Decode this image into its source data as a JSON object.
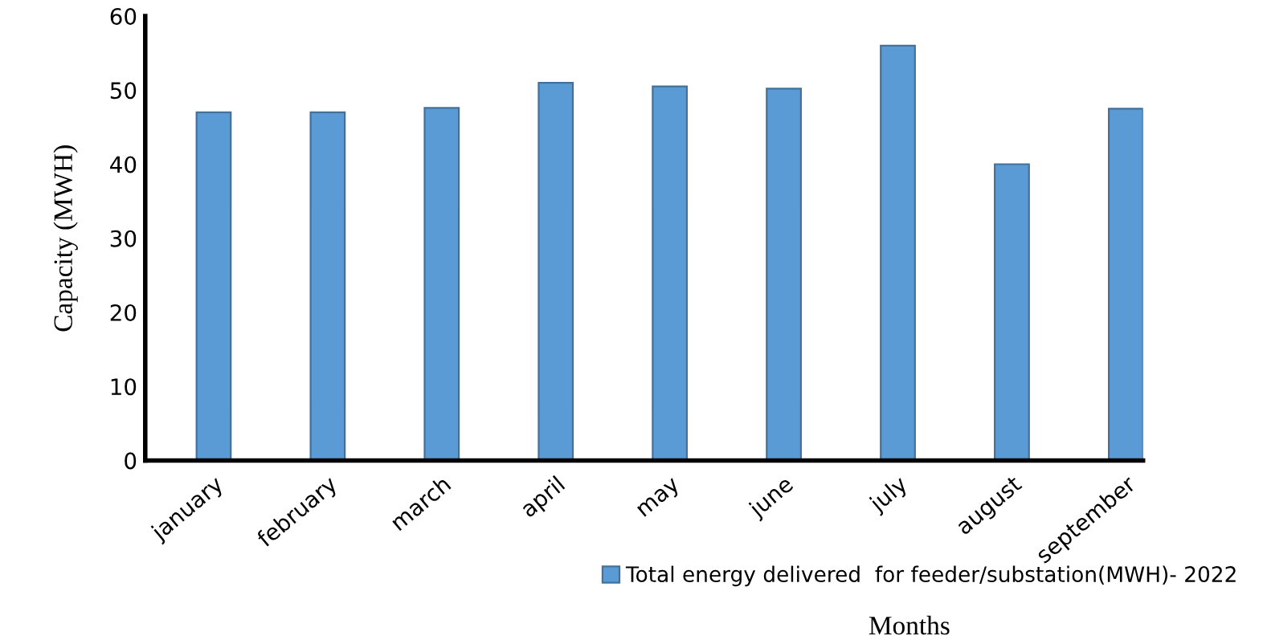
{
  "chart_data": {
    "type": "bar",
    "xlabel": "Months",
    "ylabel": "Capacity (MWH)",
    "categories": [
      "january",
      "february",
      "march",
      "april",
      "may",
      "june",
      "july",
      "august",
      "september"
    ],
    "series": [
      {
        "name": "Total energy delivered  for feeder/substation(MWH)- 2022",
        "color": "#5b9bd5",
        "values": [
          47,
          47,
          47.6,
          51,
          50.5,
          50.2,
          56,
          40,
          47.5
        ]
      }
    ],
    "ylim": [
      0,
      60
    ],
    "yticks": [
      0,
      10,
      20,
      30,
      40,
      50,
      60
    ],
    "grid": false,
    "legend": "bottom"
  }
}
